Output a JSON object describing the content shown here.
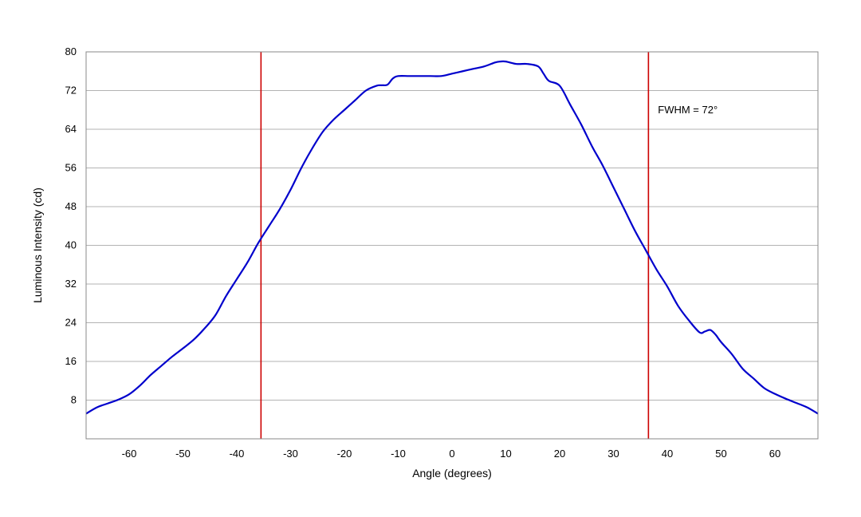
{
  "chart_data": {
    "type": "line",
    "title": "",
    "xlabel": "Angle (degrees)",
    "ylabel": "Luminous Intensity (cd)",
    "xlim": [
      -68,
      68
    ],
    "ylim": [
      0,
      80
    ],
    "x_ticks": [
      -60,
      -50,
      -40,
      -30,
      -20,
      -10,
      0,
      10,
      20,
      30,
      40,
      50,
      60
    ],
    "y_ticks": [
      8,
      16,
      24,
      32,
      40,
      48,
      56,
      64,
      72,
      80
    ],
    "grid": "horizontal",
    "legend": "none",
    "series": [
      {
        "color": "#0000cc",
        "x": [
          -68,
          -66,
          -64,
          -62,
          -60,
          -58,
          -56,
          -54,
          -52,
          -50,
          -48,
          -46,
          -44,
          -42,
          -40,
          -38,
          -36,
          -34,
          -32,
          -30,
          -28,
          -26,
          -24,
          -22,
          -20,
          -18,
          -16,
          -14,
          -13,
          -12,
          -11,
          -10,
          -8,
          -6,
          -4,
          -2,
          0,
          2,
          4,
          6,
          8,
          9,
          10,
          12,
          14,
          16,
          17,
          18,
          20,
          22,
          24,
          26,
          28,
          30,
          32,
          34,
          36,
          38,
          40,
          42,
          44,
          46,
          47,
          48,
          49,
          50,
          52,
          54,
          56,
          58,
          60,
          62,
          64,
          66,
          68
        ],
        "values": [
          5.2,
          6.5,
          7.3,
          8.1,
          9.2,
          11.0,
          13.2,
          15.1,
          17.0,
          18.7,
          20.5,
          22.8,
          25.5,
          29.5,
          33.0,
          36.5,
          40.5,
          44.0,
          47.5,
          51.5,
          56.0,
          60.0,
          63.5,
          66.0,
          68.0,
          70.0,
          72.0,
          73.0,
          73.1,
          73.2,
          74.5,
          75.0,
          75.0,
          75.0,
          75.0,
          75.0,
          75.5,
          76.0,
          76.5,
          77.0,
          77.8,
          78.0,
          78.0,
          77.5,
          77.5,
          77.0,
          75.5,
          74.0,
          73.0,
          69.0,
          65.0,
          60.5,
          56.5,
          52.0,
          47.5,
          43.0,
          39.0,
          35.0,
          31.5,
          27.5,
          24.5,
          22.0,
          22.2,
          22.5,
          21.5,
          20.0,
          17.5,
          14.5,
          12.5,
          10.5,
          9.3,
          8.3,
          7.4,
          6.5,
          5.2
        ]
      }
    ],
    "reference_lines": [
      {
        "x": -35.5,
        "color": "#cc0000"
      },
      {
        "x": 36.5,
        "color": "#cc0000"
      }
    ],
    "annotations": [
      {
        "text": "FWHM = 72°",
        "x": 39,
        "y": 68
      }
    ]
  }
}
